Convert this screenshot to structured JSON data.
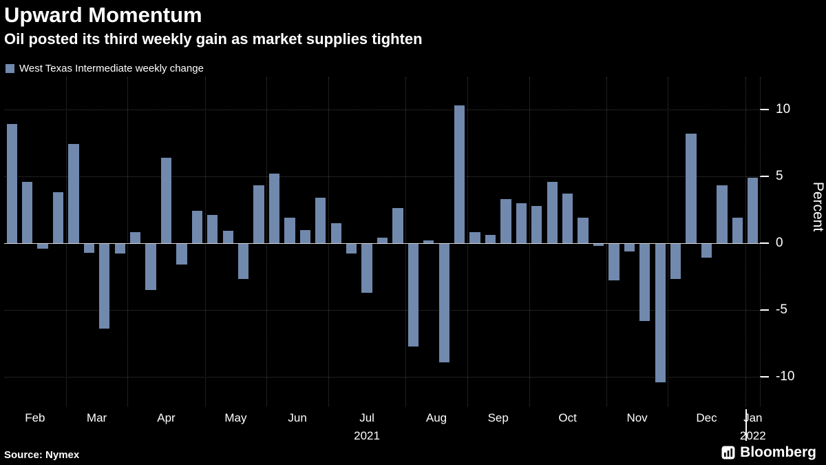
{
  "header": {
    "title": "Upward Momentum",
    "subtitle": "Oil posted its third weekly gain as market supplies tighten"
  },
  "legend": {
    "label": "West Texas Intermediate weekly change",
    "swatch_color": "#7189ad"
  },
  "footer": {
    "source": "Source: Nymex",
    "brand": "Bloomberg"
  },
  "chart_data": {
    "type": "bar",
    "title": "Upward Momentum",
    "subtitle": "Oil posted its third weekly gain as market supplies tighten",
    "series_name": "West Texas Intermediate weekly change",
    "xlabel": "",
    "ylabel": "Percent",
    "yticks": [
      10,
      5,
      0,
      -5,
      -10
    ],
    "ylim": [
      -12.2,
      12.4
    ],
    "grid": "dotted",
    "legend_position": "top-left",
    "bar_color": "#7189ad",
    "grid_color": "#3f3f3f",
    "months": [
      {
        "label": "Feb",
        "weeks": 4
      },
      {
        "label": "Mar",
        "weeks": 4
      },
      {
        "label": "Apr",
        "weeks": 5
      },
      {
        "label": "May",
        "weeks": 4
      },
      {
        "label": "Jun",
        "weeks": 4
      },
      {
        "label": "Jul",
        "weeks": 5,
        "year": "2021"
      },
      {
        "label": "Aug",
        "weeks": 4
      },
      {
        "label": "Sep",
        "weeks": 4
      },
      {
        "label": "Oct",
        "weeks": 5
      },
      {
        "label": "Nov",
        "weeks": 4
      },
      {
        "label": "Dec",
        "weeks": 5
      },
      {
        "label": "Jan",
        "weeks": 1,
        "year": "2022",
        "year_tick": true
      }
    ],
    "values": [
      8.9,
      4.6,
      -0.4,
      3.8,
      7.4,
      -0.7,
      -6.4,
      -0.8,
      0.8,
      -3.5,
      6.4,
      -1.6,
      2.4,
      2.1,
      0.9,
      -2.7,
      4.3,
      5.2,
      1.9,
      1.0,
      3.4,
      1.5,
      -0.8,
      -3.7,
      0.4,
      2.6,
      -7.7,
      0.2,
      -8.9,
      10.3,
      0.8,
      0.6,
      3.3,
      3.0,
      2.8,
      4.6,
      3.7,
      1.9,
      -0.2,
      -2.8,
      -0.6,
      -5.8,
      -10.4,
      -2.7,
      8.2,
      -1.1,
      4.3,
      1.9,
      4.9
    ]
  }
}
